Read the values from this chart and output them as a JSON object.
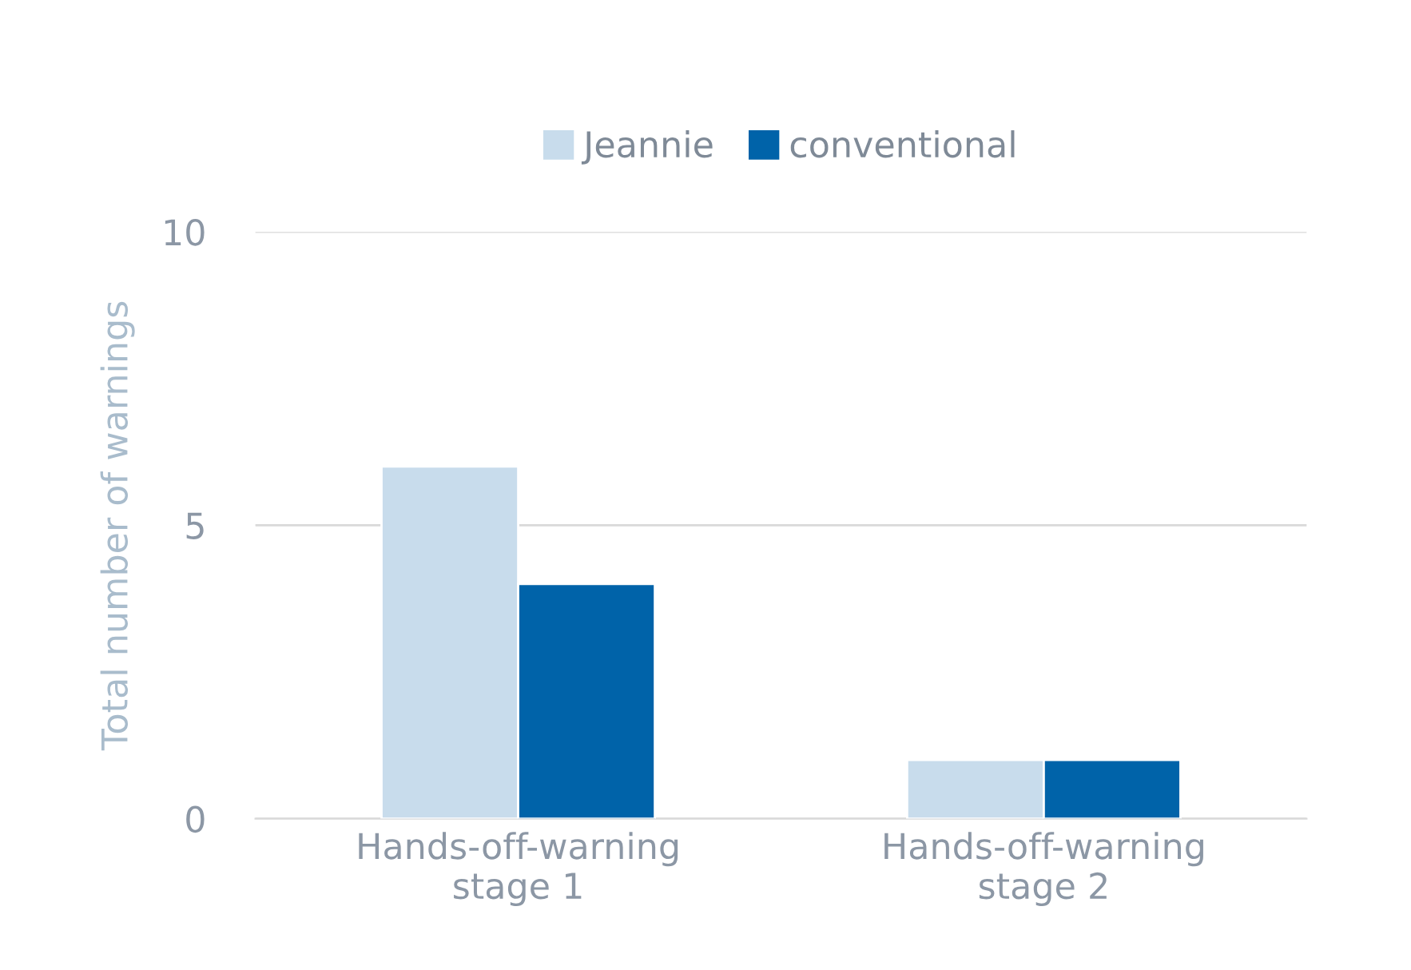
{
  "chart_data": {
    "type": "bar",
    "ylabel": "Total number of warnings",
    "categories": [
      "Hands-off-warning\nstage 1",
      "Hands-off-warning\nstage 2"
    ],
    "series": [
      {
        "name": "Jeannie",
        "color": "#c8dcec",
        "values": [
          6,
          1
        ]
      },
      {
        "name": "conventional",
        "color": "#0063a9",
        "values": [
          4,
          1
        ]
      }
    ],
    "ylim": [
      0,
      10
    ],
    "yticks": [
      0,
      5,
      10
    ],
    "grid": "y",
    "legend": "top"
  }
}
